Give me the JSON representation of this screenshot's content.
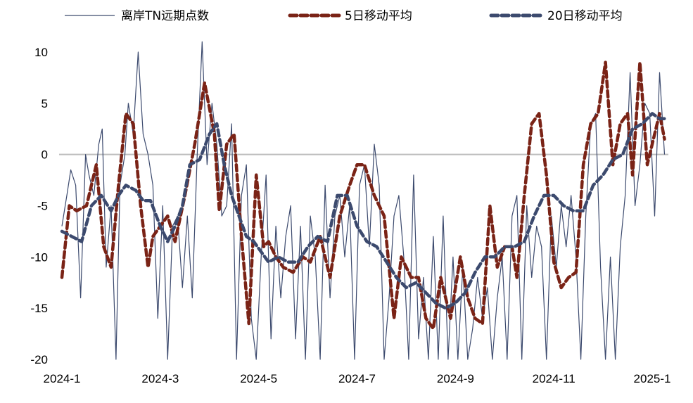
{
  "chart_data": {
    "type": "line",
    "title": "",
    "xlabel": "",
    "ylabel": "",
    "ylim": [
      -20,
      10
    ],
    "yticks": [
      10,
      5,
      0,
      -5,
      -10,
      -15,
      -20
    ],
    "xticks": [
      "2024-1",
      "2024-3",
      "2024-5",
      "2024-7",
      "2024-9",
      "2024-11",
      "2025-1"
    ],
    "x_range_months": [
      0,
      12.3
    ],
    "legend_position": "top",
    "series": [
      {
        "name": "离岸TN远期点数",
        "style": "thin-solid",
        "color": "#3c4a6e",
        "t": [
          0.0,
          0.1,
          0.18,
          0.28,
          0.38,
          0.48,
          0.55,
          0.65,
          0.75,
          0.82,
          0.9,
          1.0,
          1.1,
          1.18,
          1.28,
          1.35,
          1.45,
          1.55,
          1.65,
          1.75,
          1.85,
          1.95,
          2.05,
          2.15,
          2.25,
          2.35,
          2.45,
          2.55,
          2.65,
          2.75,
          2.85,
          2.95,
          3.05,
          3.15,
          3.25,
          3.35,
          3.45,
          3.55,
          3.65,
          3.75,
          3.85,
          3.95,
          4.05,
          4.15,
          4.25,
          4.35,
          4.45,
          4.55,
          4.65,
          4.75,
          4.85,
          4.95,
          5.05,
          5.15,
          5.25,
          5.35,
          5.45,
          5.55,
          5.65,
          5.75,
          5.85,
          5.95,
          6.05,
          6.15,
          6.25,
          6.35,
          6.45,
          6.55,
          6.65,
          6.75,
          6.85,
          6.95,
          7.05,
          7.15,
          7.25,
          7.35,
          7.45,
          7.55,
          7.65,
          7.75,
          7.85,
          7.95,
          8.05,
          8.15,
          8.25,
          8.35,
          8.45,
          8.55,
          8.65,
          8.75,
          8.85,
          8.95,
          9.05,
          9.15,
          9.25,
          9.35,
          9.45,
          9.55,
          9.65,
          9.75,
          9.85,
          9.95,
          10.05,
          10.15,
          10.25,
          10.35,
          10.45,
          10.55,
          10.65,
          10.75,
          10.85,
          10.95,
          11.05,
          11.15,
          11.25,
          11.35,
          11.45,
          11.55,
          11.65,
          11.75,
          11.85,
          11.95,
          12.05,
          12.15,
          12.25
        ],
        "values": [
          -7,
          -4,
          -1.5,
          -3,
          -14,
          0,
          -2,
          -4,
          1,
          2.5,
          -11,
          -5,
          -20,
          -3,
          0,
          5,
          2,
          10,
          2,
          0,
          -3,
          -16,
          -5,
          -20,
          -7,
          -6,
          -13,
          -6,
          -14,
          0,
          11,
          -1,
          5,
          1,
          -6,
          -5,
          3,
          -20,
          -4,
          -1,
          -16,
          -20,
          -10,
          -2,
          -18,
          -7,
          -14,
          -8,
          -5,
          -18,
          -7,
          -20,
          -6,
          -10,
          -20,
          -3,
          -14,
          -6,
          -4,
          -10,
          -5,
          -20,
          -3,
          -1,
          -9,
          1,
          -3,
          -20,
          -14,
          -6,
          -4,
          -10,
          -20,
          -2,
          -18,
          -12,
          -20,
          -8,
          -20,
          -6,
          -20,
          -10,
          -20,
          -11,
          -20,
          -17,
          -12,
          -16,
          -13,
          -20,
          -14,
          -10,
          -20,
          -6,
          -4,
          -20,
          -5,
          -12,
          -7,
          -9,
          -20,
          -6,
          -11,
          -5,
          -9,
          -4,
          -10,
          -20,
          -6,
          3,
          4,
          -11,
          -20,
          -10,
          -20,
          -9,
          -4,
          8,
          -5,
          -1,
          5,
          4,
          -6,
          8,
          0
        ]
      },
      {
        "name": "5日移动平均",
        "style": "thick-dashed",
        "color": "#7a2316",
        "t": [
          0.0,
          0.15,
          0.3,
          0.5,
          0.7,
          0.85,
          1.0,
          1.15,
          1.3,
          1.45,
          1.6,
          1.75,
          1.85,
          2.0,
          2.15,
          2.3,
          2.5,
          2.7,
          2.9,
          3.1,
          3.2,
          3.35,
          3.5,
          3.65,
          3.8,
          3.95,
          4.1,
          4.2,
          4.35,
          4.5,
          4.7,
          4.9,
          5.05,
          5.25,
          5.45,
          5.65,
          5.85,
          6.0,
          6.15,
          6.35,
          6.55,
          6.75,
          6.9,
          7.0,
          7.1,
          7.25,
          7.4,
          7.55,
          7.7,
          7.9,
          8.1,
          8.25,
          8.4,
          8.55,
          8.7,
          8.85,
          9.0,
          9.15,
          9.25,
          9.4,
          9.55,
          9.7,
          9.85,
          10.0,
          10.15,
          10.3,
          10.45,
          10.6,
          10.75,
          10.9,
          11.05,
          11.2,
          11.35,
          11.5,
          11.6,
          11.75,
          11.9,
          12.05,
          12.15,
          12.25
        ],
        "values": [
          -12,
          -5,
          -5.5,
          -5,
          -1,
          -9,
          -11,
          -3,
          4,
          3,
          -5,
          -11,
          -8,
          -7,
          -6,
          -8.5,
          -4,
          1,
          7,
          2,
          -5.5,
          1,
          2,
          -8,
          -16.5,
          -2,
          -9,
          -8.5,
          -10,
          -11,
          -11.5,
          -10,
          -10.5,
          -8,
          -12,
          -6,
          -3,
          -1,
          -1,
          -4,
          -6,
          -16,
          -10,
          -11,
          -12,
          -12,
          -16,
          -17,
          -12,
          -16,
          -10,
          -14,
          -16,
          -16.5,
          -5,
          -11,
          -9,
          -9,
          -12,
          -4,
          3,
          4,
          -2,
          -10.5,
          -13,
          -12,
          -11.5,
          -1,
          3,
          4,
          9,
          -1,
          3,
          4,
          -2,
          9,
          -1,
          2,
          4,
          1.5
        ]
      },
      {
        "name": "20日移动平均",
        "style": "thick-dashed",
        "color": "#3c4a6e",
        "t": [
          0.0,
          0.2,
          0.4,
          0.6,
          0.8,
          1.0,
          1.15,
          1.3,
          1.5,
          1.65,
          1.8,
          2.0,
          2.15,
          2.3,
          2.45,
          2.6,
          2.8,
          3.0,
          3.15,
          3.3,
          3.45,
          3.6,
          3.75,
          3.9,
          4.05,
          4.2,
          4.4,
          4.6,
          4.8,
          5.0,
          5.2,
          5.4,
          5.6,
          5.8,
          6.0,
          6.2,
          6.4,
          6.6,
          6.8,
          7.0,
          7.2,
          7.4,
          7.6,
          7.8,
          8.0,
          8.2,
          8.4,
          8.6,
          8.8,
          9.0,
          9.2,
          9.4,
          9.6,
          9.8,
          10.0,
          10.2,
          10.4,
          10.6,
          10.8,
          11.0,
          11.2,
          11.4,
          11.6,
          11.8,
          12.0,
          12.15,
          12.25
        ],
        "values": [
          -7.5,
          -8,
          -8.5,
          -5,
          -4,
          -5.5,
          -4,
          -3,
          -3.5,
          -4.5,
          -4.5,
          -7,
          -8.5,
          -7,
          -5,
          -1,
          -0.5,
          2,
          3,
          -1,
          -4,
          -6,
          -8,
          -8.5,
          -9.5,
          -10.5,
          -10,
          -10.5,
          -10.5,
          -9,
          -8,
          -8.5,
          -4,
          -4,
          -7,
          -8.5,
          -9,
          -10.5,
          -12,
          -13,
          -12.5,
          -13.5,
          -14.5,
          -15,
          -14.5,
          -13.5,
          -11.5,
          -10,
          -10,
          -9,
          -9,
          -8.5,
          -6,
          -4,
          -4,
          -5,
          -5.5,
          -5.5,
          -3,
          -2,
          -0.5,
          0,
          2.5,
          3,
          4,
          3.5,
          3.5
        ]
      }
    ]
  }
}
